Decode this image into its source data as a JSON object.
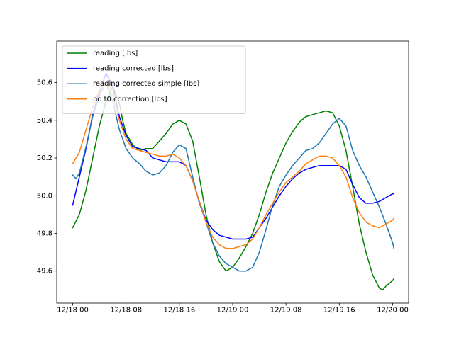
{
  "chart_data": {
    "type": "line",
    "title": "",
    "xlabel": "",
    "ylabel": "",
    "x_unit": "hours since 12/18 00",
    "xlim": [
      -2.4,
      50.4
    ],
    "ylim": [
      49.43,
      50.82
    ],
    "grid": false,
    "legend_position": "upper-left",
    "x_ticks": [
      {
        "value": 0,
        "label": "12/18 00"
      },
      {
        "value": 8,
        "label": "12/18 08"
      },
      {
        "value": 16,
        "label": "12/18 16"
      },
      {
        "value": 24,
        "label": "12/19 00"
      },
      {
        "value": 32,
        "label": "12/19 08"
      },
      {
        "value": 40,
        "label": "12/19 16"
      },
      {
        "value": 48,
        "label": "12/20 00"
      }
    ],
    "y_ticks": [
      {
        "value": 49.6,
        "label": "49.6"
      },
      {
        "value": 49.8,
        "label": "49.8"
      },
      {
        "value": 50.0,
        "label": "50.0"
      },
      {
        "value": 50.2,
        "label": "50.2"
      },
      {
        "value": 50.4,
        "label": "50.4"
      },
      {
        "value": 50.6,
        "label": "50.6"
      }
    ],
    "series": [
      {
        "name": "reading [lbs]",
        "color": "#008000",
        "points": [
          [
            0,
            49.83
          ],
          [
            1,
            49.9
          ],
          [
            2,
            50.03
          ],
          [
            3,
            50.2
          ],
          [
            4,
            50.37
          ],
          [
            5,
            50.5
          ],
          [
            6,
            50.58
          ],
          [
            7,
            50.49
          ],
          [
            7.5,
            50.4
          ],
          [
            8,
            50.33
          ],
          [
            9,
            50.27
          ],
          [
            10,
            50.24
          ],
          [
            11,
            50.25
          ],
          [
            12,
            50.25
          ],
          [
            13,
            50.29
          ],
          [
            14,
            50.33
          ],
          [
            15,
            50.38
          ],
          [
            16,
            50.4
          ],
          [
            17,
            50.38
          ],
          [
            18,
            50.29
          ],
          [
            19,
            50.1
          ],
          [
            20,
            49.9
          ],
          [
            21,
            49.75
          ],
          [
            22,
            49.65
          ],
          [
            23,
            49.6
          ],
          [
            24,
            49.62
          ],
          [
            25,
            49.67
          ],
          [
            26,
            49.73
          ],
          [
            27,
            49.8
          ],
          [
            28,
            49.9
          ],
          [
            29,
            50.02
          ],
          [
            30,
            50.12
          ],
          [
            31,
            50.2
          ],
          [
            32,
            50.28
          ],
          [
            33,
            50.34
          ],
          [
            34,
            50.39
          ],
          [
            35,
            50.42
          ],
          [
            36,
            50.43
          ],
          [
            37,
            50.44
          ],
          [
            38,
            50.45
          ],
          [
            39,
            50.44
          ],
          [
            40,
            50.37
          ],
          [
            41,
            50.24
          ],
          [
            42,
            50.05
          ],
          [
            43,
            49.85
          ],
          [
            44,
            49.7
          ],
          [
            45,
            49.58
          ],
          [
            46,
            49.51
          ],
          [
            46.5,
            49.5
          ],
          [
            47,
            49.52
          ],
          [
            48,
            49.55
          ],
          [
            48.2,
            49.56
          ]
        ]
      },
      {
        "name": "reading corrected [lbs]",
        "color": "#0000ff",
        "points": [
          [
            0,
            49.95
          ],
          [
            1,
            50.1
          ],
          [
            2,
            50.25
          ],
          [
            3,
            50.43
          ],
          [
            4,
            50.55
          ],
          [
            5,
            50.65
          ],
          [
            6,
            50.58
          ],
          [
            7,
            50.42
          ],
          [
            8,
            50.32
          ],
          [
            9,
            50.26
          ],
          [
            10,
            50.25
          ],
          [
            11,
            50.24
          ],
          [
            12,
            50.2
          ],
          [
            13,
            50.19
          ],
          [
            14,
            50.18
          ],
          [
            15,
            50.18
          ],
          [
            16,
            50.18
          ],
          [
            17,
            50.16
          ],
          [
            18,
            50.08
          ],
          [
            19,
            49.97
          ],
          [
            20,
            49.87
          ],
          [
            21,
            49.82
          ],
          [
            22,
            49.79
          ],
          [
            23,
            49.78
          ],
          [
            24,
            49.77
          ],
          [
            25,
            49.77
          ],
          [
            26,
            49.77
          ],
          [
            27,
            49.78
          ],
          [
            28,
            49.83
          ],
          [
            29,
            49.88
          ],
          [
            30,
            49.94
          ],
          [
            31,
            50.0
          ],
          [
            32,
            50.05
          ],
          [
            33,
            50.09
          ],
          [
            34,
            50.12
          ],
          [
            35,
            50.14
          ],
          [
            36,
            50.15
          ],
          [
            37,
            50.16
          ],
          [
            38,
            50.16
          ],
          [
            39,
            50.16
          ],
          [
            40,
            50.16
          ],
          [
            41,
            50.14
          ],
          [
            42,
            50.06
          ],
          [
            43,
            49.99
          ],
          [
            44,
            49.96
          ],
          [
            45,
            49.96
          ],
          [
            46,
            49.97
          ],
          [
            47,
            49.99
          ],
          [
            48,
            50.01
          ],
          [
            48.2,
            50.01
          ]
        ]
      },
      {
        "name": "reading corrected simple [lbs]",
        "color": "#1f77b4",
        "points": [
          [
            0,
            50.11
          ],
          [
            0.5,
            50.09
          ],
          [
            1,
            50.12
          ],
          [
            2,
            50.26
          ],
          [
            3,
            50.42
          ],
          [
            4,
            50.53
          ],
          [
            5,
            50.6
          ],
          [
            6,
            50.5
          ],
          [
            7,
            50.35
          ],
          [
            8,
            50.25
          ],
          [
            9,
            50.2
          ],
          [
            10,
            50.17
          ],
          [
            11,
            50.13
          ],
          [
            12,
            50.11
          ],
          [
            13,
            50.12
          ],
          [
            14,
            50.16
          ],
          [
            15,
            50.23
          ],
          [
            16,
            50.27
          ],
          [
            17,
            50.25
          ],
          [
            18,
            50.1
          ],
          [
            19,
            49.96
          ],
          [
            20,
            49.86
          ],
          [
            21,
            49.75
          ],
          [
            22,
            49.68
          ],
          [
            23,
            49.64
          ],
          [
            24,
            49.62
          ],
          [
            25,
            49.6
          ],
          [
            26,
            49.6
          ],
          [
            27,
            49.62
          ],
          [
            28,
            49.7
          ],
          [
            29,
            49.82
          ],
          [
            30,
            49.95
          ],
          [
            31,
            50.05
          ],
          [
            32,
            50.11
          ],
          [
            33,
            50.16
          ],
          [
            34,
            50.2
          ],
          [
            35,
            50.24
          ],
          [
            36,
            50.25
          ],
          [
            37,
            50.28
          ],
          [
            38,
            50.33
          ],
          [
            39,
            50.38
          ],
          [
            40,
            50.41
          ],
          [
            41,
            50.37
          ],
          [
            42,
            50.24
          ],
          [
            43,
            50.16
          ],
          [
            44,
            50.1
          ],
          [
            45,
            50.02
          ],
          [
            46,
            49.94
          ],
          [
            47,
            49.85
          ],
          [
            48,
            49.75
          ],
          [
            48.2,
            49.72
          ]
        ]
      },
      {
        "name": "no t0 correction [lbs]",
        "color": "#ff7f0e",
        "points": [
          [
            0,
            50.17
          ],
          [
            1,
            50.23
          ],
          [
            2,
            50.35
          ],
          [
            3,
            50.47
          ],
          [
            4,
            50.56
          ],
          [
            5,
            50.6
          ],
          [
            6,
            50.53
          ],
          [
            7,
            50.4
          ],
          [
            8,
            50.3
          ],
          [
            9,
            50.25
          ],
          [
            10,
            50.24
          ],
          [
            11,
            50.23
          ],
          [
            12,
            50.22
          ],
          [
            13,
            50.21
          ],
          [
            14,
            50.21
          ],
          [
            15,
            50.22
          ],
          [
            16,
            50.2
          ],
          [
            17,
            50.16
          ],
          [
            18,
            50.08
          ],
          [
            19,
            49.97
          ],
          [
            20,
            49.86
          ],
          [
            21,
            49.78
          ],
          [
            22,
            49.74
          ],
          [
            23,
            49.72
          ],
          [
            24,
            49.72
          ],
          [
            25,
            49.73
          ],
          [
            26,
            49.74
          ],
          [
            27,
            49.77
          ],
          [
            28,
            49.83
          ],
          [
            29,
            49.9
          ],
          [
            30,
            49.96
          ],
          [
            31,
            50.02
          ],
          [
            32,
            50.07
          ],
          [
            33,
            50.1
          ],
          [
            34,
            50.13
          ],
          [
            35,
            50.17
          ],
          [
            36,
            50.19
          ],
          [
            37,
            50.21
          ],
          [
            38,
            50.21
          ],
          [
            39,
            50.2
          ],
          [
            40,
            50.16
          ],
          [
            41,
            50.1
          ],
          [
            42,
            49.99
          ],
          [
            43,
            49.91
          ],
          [
            44,
            49.86
          ],
          [
            45,
            49.84
          ],
          [
            46,
            49.83
          ],
          [
            47,
            49.85
          ],
          [
            48,
            49.87
          ],
          [
            48.2,
            49.88
          ]
        ]
      }
    ]
  }
}
